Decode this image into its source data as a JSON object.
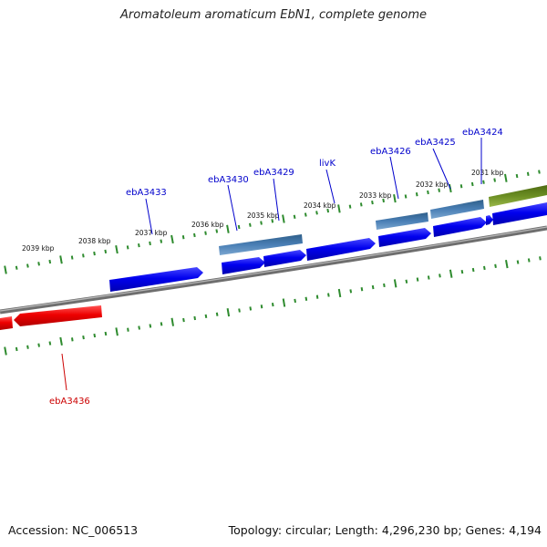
{
  "header": {
    "title": "Aromatoleum aromaticum EbN1, complete genome"
  },
  "footer": {
    "accession": "Accession: NC_006513",
    "summary": "Topology: circular; Length: 4,296,230 bp; Genes: 4,194"
  },
  "map": {
    "kbp_labels": [
      "2039 kbp",
      "2038 kbp",
      "2037 kbp",
      "2036 kbp",
      "2035 kbp",
      "2034 kbp",
      "2033 kbp",
      "2032 kbp",
      "2031 kbp"
    ],
    "gene_labels": [
      {
        "name": "ebA3433",
        "color": "#0000cc"
      },
      {
        "name": "ebA3430",
        "color": "#0000cc"
      },
      {
        "name": "ebA3429",
        "color": "#0000cc"
      },
      {
        "name": "livK",
        "color": "#0000cc"
      },
      {
        "name": "ebA3426",
        "color": "#0000cc"
      },
      {
        "name": "ebA3425",
        "color": "#0000cc"
      },
      {
        "name": "ebA3424",
        "color": "#0000cc"
      },
      {
        "name": "ebA3436",
        "color": "#cc0000"
      }
    ],
    "colors": {
      "forward_cds": "#0000ee",
      "reverse_cds": "#ee0000",
      "rna": "#4a7fb5",
      "other_feature": "#6b8e23",
      "backbone": "#808080",
      "ticks": "#2e8b2e"
    }
  }
}
